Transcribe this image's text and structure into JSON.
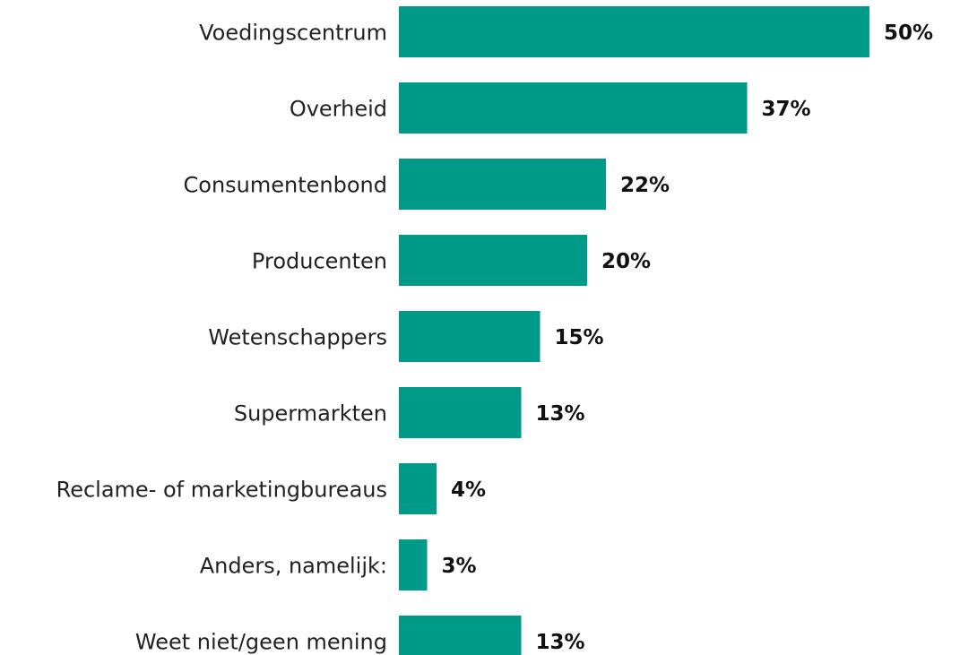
{
  "chart_data": {
    "type": "bar",
    "orientation": "horizontal",
    "color": "#009a88",
    "categories": [
      "Voedingscentrum",
      "Overheid",
      "Consumentenbond",
      "Producenten",
      "Wetenschappers",
      "Supermarkten",
      "Reclame- of marketingbureaus",
      "Anders, namelijk:",
      "Weet niet/geen mening"
    ],
    "values": [
      50,
      37,
      22,
      20,
      15,
      13,
      4,
      3,
      13
    ],
    "value_labels": [
      "50%",
      "37%",
      "22%",
      "20%",
      "15%",
      "13%",
      "4%",
      "3%",
      "13%"
    ]
  }
}
